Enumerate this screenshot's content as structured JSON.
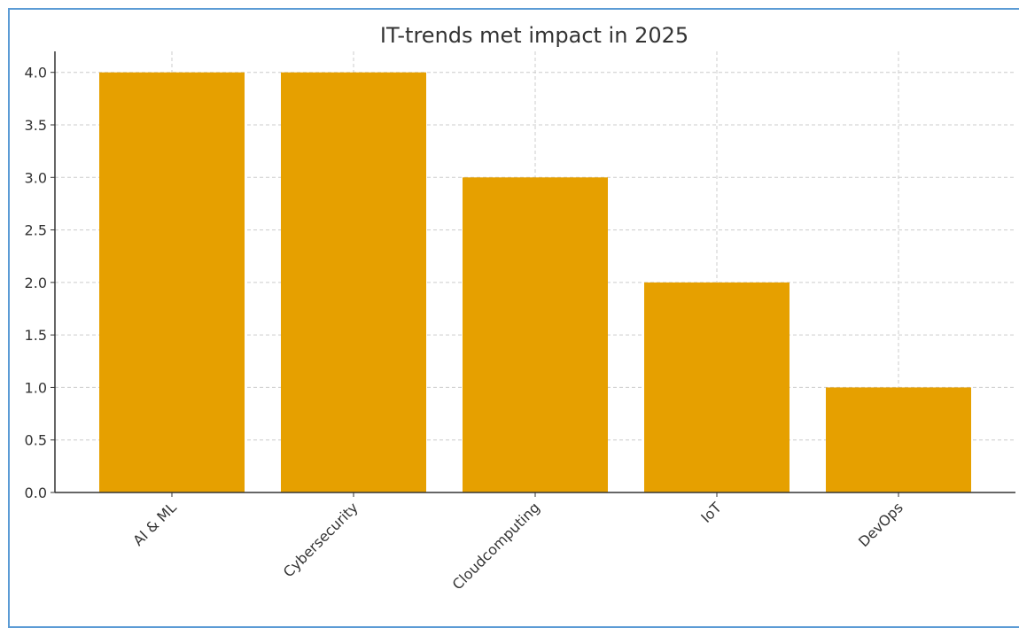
{
  "chart_data": {
    "type": "bar",
    "title": "IT-trends met impact in 2025",
    "xlabel": "",
    "ylabel": "",
    "categories": [
      "AI & ML",
      "Cybersecurity",
      "Cloudcomputing",
      "IoT",
      "DevOps"
    ],
    "values": [
      4,
      4,
      3,
      2,
      1
    ],
    "ylim": [
      0,
      4.2
    ],
    "yticks": [
      "0.0",
      "0.5",
      "1.0",
      "1.5",
      "2.0",
      "2.5",
      "3.0",
      "3.5",
      "4.0"
    ],
    "grid": true,
    "bar_color": "#e6a000",
    "grid_color": "#cccccc"
  }
}
